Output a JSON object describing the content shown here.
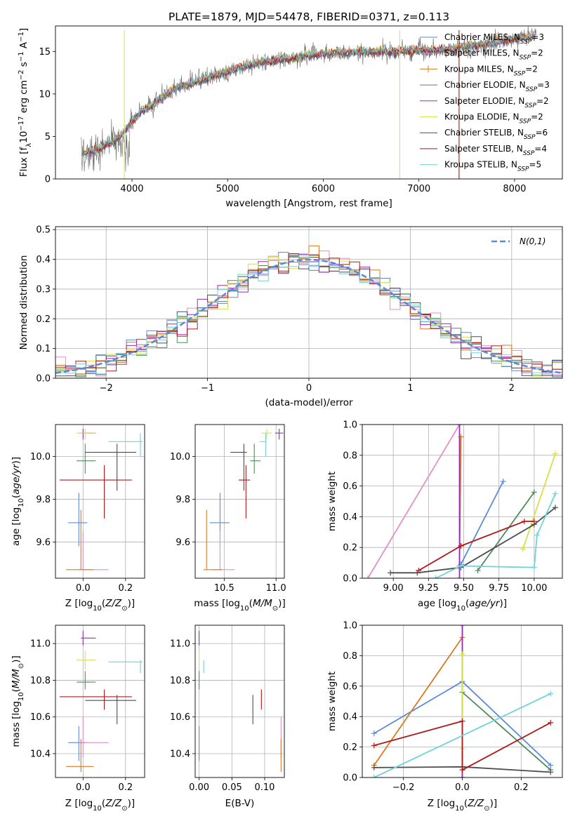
{
  "title": "PLATE=1879, MJD=54478, FIBERID=0371, z=0.113",
  "colors": {
    "c0": "#5b8bd8",
    "c1": "#e38fc8",
    "c2": "#d87a22",
    "c3": "#4f8a5e",
    "c4": "#9b2bb8",
    "c5": "#d6e04a",
    "c6": "#4d4d4d",
    "c7": "#b01818",
    "c8": "#6fd3d8"
  },
  "chart_data": [
    {
      "id": "spectrum",
      "type": "line",
      "xlabel": "wavelength [Angstrom, rest frame]",
      "ylabel": "Flux [fλ10^-17 erg cm^-2 s^-1 A^-1]",
      "xlim": [
        3200,
        8500
      ],
      "ylim": [
        0,
        18
      ],
      "xticks": [
        4000,
        5000,
        6000,
        7000,
        8000
      ],
      "yticks": [
        0,
        5,
        10,
        15
      ],
      "grid": false,
      "legend_position": "right",
      "spectrum_knots": {
        "x": [
          3500,
          3600,
          3700,
          3800,
          3900,
          4000,
          4100,
          4200,
          4300,
          4400,
          4500,
          4700,
          4900,
          5100,
          5300,
          5500,
          5700,
          5900,
          6100,
          6300,
          6500,
          6700,
          6900,
          7100,
          7300,
          7500,
          7700,
          7900,
          8100,
          8200
        ],
        "y": [
          3.2,
          3.3,
          3.8,
          4.5,
          5.2,
          6.8,
          8.0,
          8.6,
          9.5,
          10.3,
          10.8,
          11.5,
          12.3,
          13.0,
          13.6,
          14.0,
          14.3,
          14.6,
          14.8,
          14.9,
          15.0,
          15.0,
          15.1,
          15.1,
          15.3,
          15.6,
          15.9,
          16.3,
          16.7,
          16.9
        ]
      },
      "legend": [
        {
          "model": "Chabrier MILES",
          "nssp": "3",
          "color": "c0"
        },
        {
          "model": "Salpeter MILES",
          "nssp": "2",
          "color": "c1"
        },
        {
          "model": "Kroupa MILES",
          "nssp": "2",
          "color": "c2"
        },
        {
          "model": "Chabrier ELODIE",
          "nssp": "3",
          "color": "c3"
        },
        {
          "model": "Salpeter ELODIE",
          "nssp": "2",
          "color": "c4"
        },
        {
          "model": "Kroupa ELODIE",
          "nssp": "2",
          "color": "c5"
        },
        {
          "model": "Chabrier STELIB",
          "nssp": "6",
          "color": "c6"
        },
        {
          "model": "Salpeter STELIB",
          "nssp": "4",
          "color": "c7"
        },
        {
          "model": "Kroupa STELIB",
          "nssp": "5",
          "color": "c8"
        }
      ]
    },
    {
      "id": "residuals",
      "type": "histogram",
      "xlabel": "(data-model)/error",
      "ylabel": "Normed distribution",
      "xlim": [
        -2.5,
        2.5
      ],
      "ylim": [
        0,
        0.51
      ],
      "xticks": [
        -2,
        -1,
        0,
        1,
        2
      ],
      "yticks": [
        0.0,
        0.1,
        0.2,
        0.3,
        0.4,
        0.5
      ],
      "grid": true,
      "legend_position": "top-right",
      "reference_label": "N(0,1)",
      "bin_width": 0.1
    },
    {
      "id": "age-vs-Z",
      "type": "scatter",
      "xlabel": "Z [log10(Z/Z⊙)]",
      "ylabel": "age  [log10(age/yr)]",
      "xlim": [
        -0.13,
        0.29
      ],
      "ylim": [
        9.43,
        10.15
      ],
      "xticks": [
        0.0,
        0.2
      ],
      "yticks": [
        9.6,
        9.8,
        10.0
      ],
      "grid": true
    },
    {
      "id": "age-vs-mass",
      "type": "scatter",
      "xlabel": "mass [log10(M/M⊙)]",
      "ylabel": "",
      "xlim": [
        10.22,
        11.08
      ],
      "ylim": [
        9.43,
        10.15
      ],
      "xticks": [
        10.5,
        11.0
      ],
      "yticks": [
        9.6,
        9.8,
        10.0
      ],
      "grid": true
    },
    {
      "id": "mass-weight-vs-age",
      "type": "line",
      "xlabel": "age  [log10(age/yr)]",
      "ylabel": "mass weight",
      "xlim": [
        8.78,
        10.2
      ],
      "ylim": [
        0,
        1.0
      ],
      "xticks": [
        9.0,
        9.25,
        9.5,
        9.75,
        10.0
      ],
      "yticks": [
        0.0,
        0.2,
        0.4,
        0.6,
        0.8,
        1.0
      ],
      "grid": true,
      "series": [
        {
          "color": "c0",
          "x": [
            9.48,
            9.78
          ],
          "y": [
            0.09,
            0.63
          ]
        },
        {
          "color": "c1",
          "x": [
            8.82,
            9.47
          ],
          "y": [
            0.0,
            1.0
          ]
        },
        {
          "color": "c2",
          "x": [
            9.47,
            9.48
          ],
          "y": [
            0.08,
            0.92
          ]
        },
        {
          "color": "c3",
          "x": [
            9.6,
            10.0
          ],
          "y": [
            0.05,
            0.56
          ]
        },
        {
          "color": "c4",
          "x": [
            9.47,
            9.47
          ],
          "y": [
            0.0,
            1.0
          ]
        },
        {
          "color": "c5",
          "x": [
            9.92,
            10.15
          ],
          "y": [
            0.19,
            0.81
          ]
        },
        {
          "color": "c6",
          "x": [
            8.98,
            9.17,
            9.48,
            10.0,
            10.15
          ],
          "y": [
            0.035,
            0.035,
            0.07,
            0.35,
            0.46
          ]
        },
        {
          "color": "c7",
          "x": [
            9.18,
            9.48,
            9.93,
            10.0
          ],
          "y": [
            0.05,
            0.21,
            0.37,
            0.37
          ]
        },
        {
          "color": "c8",
          "x": [
            9.3,
            9.48,
            10.0,
            10.02,
            10.15
          ],
          "y": [
            0.0,
            0.08,
            0.07,
            0.28,
            0.55
          ]
        }
      ]
    },
    {
      "id": "mass-vs-Z",
      "type": "scatter",
      "xlabel": "Z [log10(Z/Z⊙)]",
      "ylabel": "mass [log10(M/M⊙)]",
      "xlim": [
        -0.13,
        0.29
      ],
      "ylim": [
        10.27,
        11.1
      ],
      "xticks": [
        0.0,
        0.2
      ],
      "yticks": [
        10.4,
        10.6,
        10.8,
        11.0
      ],
      "grid": true
    },
    {
      "id": "mass-vs-ebv",
      "type": "scatter",
      "xlabel": "E(B-V)",
      "ylabel": "",
      "xlim": [
        -0.006,
        0.13
      ],
      "ylim": [
        10.27,
        11.1
      ],
      "xticks": [
        0.0,
        0.05,
        0.1
      ],
      "yticks": [
        10.4,
        10.6,
        10.8,
        11.0
      ],
      "grid": true
    },
    {
      "id": "mass-weight-vs-Z",
      "type": "line",
      "xlabel": "Z [log10(Z/Z⊙)]",
      "ylabel": "mass weight",
      "xlim": [
        -0.34,
        0.34
      ],
      "ylim": [
        0,
        1.0
      ],
      "xticks": [
        -0.2,
        0.0,
        0.2
      ],
      "yticks": [
        0.0,
        0.2,
        0.4,
        0.6,
        0.8,
        1.0
      ],
      "grid": true,
      "series": [
        {
          "color": "c0",
          "x": [
            -0.3,
            0.0,
            0.3
          ],
          "y": [
            0.29,
            0.63,
            0.08
          ]
        },
        {
          "color": "c1",
          "x": [
            0.0,
            0.0
          ],
          "y": [
            0.0,
            1.0
          ]
        },
        {
          "color": "c2",
          "x": [
            -0.3,
            0.0
          ],
          "y": [
            0.08,
            0.92
          ]
        },
        {
          "color": "c3",
          "x": [
            0.0,
            0.3
          ],
          "y": [
            0.56,
            0.05
          ]
        },
        {
          "color": "c4",
          "x": [
            0.0,
            0.0
          ],
          "y": [
            0.0,
            1.0
          ]
        },
        {
          "color": "c5",
          "x": [
            0.0,
            0.0
          ],
          "y": [
            0.19,
            0.81
          ]
        },
        {
          "color": "c6",
          "x": [
            -0.3,
            0.0,
            0.3
          ],
          "y": [
            0.065,
            0.07,
            0.035
          ]
        },
        {
          "color": "c7",
          "x": [
            -0.3,
            0.0,
            0.0,
            0.3
          ],
          "y": [
            0.21,
            0.37,
            0.05,
            0.36
          ]
        },
        {
          "color": "c8",
          "x": [
            -0.3,
            0.3
          ],
          "y": [
            0.0,
            0.55
          ]
        }
      ]
    }
  ],
  "models": [
    {
      "color": "c0",
      "Z": -0.02,
      "Zlo": -0.07,
      "Zhi": 0.02,
      "age": 9.69,
      "agelo": 9.58,
      "agehi": 9.83,
      "mass": 10.46,
      "masslo": 10.36,
      "masshi": 10.55,
      "ebv": 0.0
    },
    {
      "color": "c1",
      "Z": 0.0,
      "Zlo": -0.02,
      "Zhi": 0.12,
      "age": 9.47,
      "agelo": 9.47,
      "agehi": 9.65,
      "mass": 10.46,
      "masslo": 10.38,
      "masshi": 10.6,
      "ebv": 0.125
    },
    {
      "color": "c2",
      "Z": -0.01,
      "Zlo": -0.08,
      "Zhi": 0.05,
      "age": 9.47,
      "agelo": 9.47,
      "agehi": 9.75,
      "mass": 10.33,
      "masslo": 10.3,
      "masshi": 10.48,
      "ebv": 0.125
    },
    {
      "color": "c3",
      "Z": 0.01,
      "Zlo": -0.03,
      "Zhi": 0.06,
      "age": 9.98,
      "agelo": 9.92,
      "agehi": 10.06,
      "mass": 10.79,
      "masslo": 10.75,
      "masshi": 10.85,
      "ebv": 0.0
    },
    {
      "color": "c4",
      "Z": 0.0,
      "Zlo": -0.01,
      "Zhi": 0.06,
      "age": 10.11,
      "agelo": 10.08,
      "agehi": 10.13,
      "mass": 11.03,
      "masslo": 10.99,
      "masshi": 11.07,
      "ebv": 0.0
    },
    {
      "color": "c5",
      "Z": 0.01,
      "Zlo": -0.03,
      "Zhi": 0.06,
      "age": 10.11,
      "agelo": 10.08,
      "agehi": 10.13,
      "mass": 10.91,
      "masslo": 10.86,
      "masshi": 10.96,
      "ebv": 0.0
    },
    {
      "color": "c6",
      "Z": 0.16,
      "Zlo": 0.01,
      "Zhi": 0.25,
      "age": 10.02,
      "agelo": 9.84,
      "agehi": 10.06,
      "mass": 10.69,
      "masslo": 10.56,
      "masshi": 10.72,
      "ebv": 0.082
    },
    {
      "color": "c7",
      "Z": 0.1,
      "Zlo": -0.11,
      "Zhi": 0.23,
      "age": 9.89,
      "agelo": 9.71,
      "agehi": 9.96,
      "mass": 10.71,
      "masslo": 10.64,
      "masshi": 10.75,
      "ebv": 0.095
    },
    {
      "color": "c8",
      "Z": 0.27,
      "Zlo": 0.12,
      "Zhi": 0.28,
      "age": 10.07,
      "agelo": 10.0,
      "agehi": 10.11,
      "mass": 10.9,
      "masslo": 10.84,
      "masshi": 10.91,
      "ebv": 0.007
    }
  ]
}
